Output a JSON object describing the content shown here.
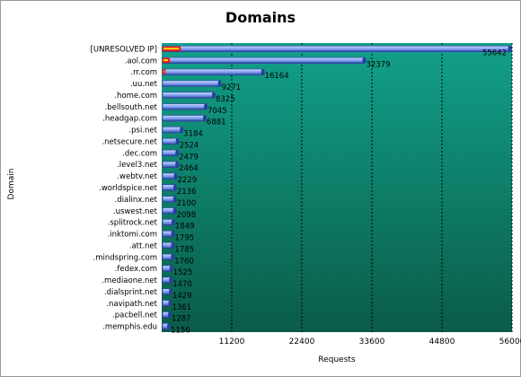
{
  "chart_data": {
    "type": "bar",
    "orientation": "horizontal",
    "title": "Domains",
    "xlabel": "Requests",
    "ylabel": "Domain",
    "xlim": [
      0,
      56000
    ],
    "xticks": [
      11200,
      22400,
      33600,
      44800,
      56000
    ],
    "grid": true,
    "categories": [
      "[UNRESOLVED IP]",
      ".aol.com",
      ".rr.com",
      ".uu.net",
      ".home.com",
      ".bellsouth.net",
      ".headgap.com",
      ".psi.net",
      ".netsecure.net",
      ".dec.com",
      ".level3.net",
      ".webtv.net",
      ".worldspice.net",
      ".dialinx.net",
      ".uswest.net",
      ".splitrock.net",
      ".inktomi.com",
      ".att.net",
      ".mindspring.com",
      ".fedex.com",
      ".mediaone.net",
      ".dialsprint.net",
      ".navipath.net",
      ".pacbell.net",
      ".memphis.edu"
    ],
    "values": [
      55642,
      32379,
      16164,
      9271,
      8325,
      7045,
      6881,
      3184,
      2524,
      2479,
      2464,
      2229,
      2136,
      2100,
      2098,
      1849,
      1795,
      1785,
      1760,
      1525,
      1470,
      1429,
      1361,
      1287,
      1156
    ],
    "secondary_values": [
      2900,
      1150,
      480,
      0,
      0,
      0,
      0,
      0,
      0,
      0,
      0,
      0,
      0,
      0,
      0,
      0,
      0,
      0,
      0,
      0,
      0,
      0,
      0,
      0,
      0
    ],
    "colors": {
      "plot_top": "#12a08a",
      "plot_bottom": "#0a5c48",
      "bar_light": "#c8d8ff",
      "bar_mid": "#7f9df0",
      "bar_dark": "#2a3f9e",
      "secondary_fill": "#e81c10",
      "secondary_highlight": "#ffd21e",
      "grid": "#000000"
    }
  }
}
